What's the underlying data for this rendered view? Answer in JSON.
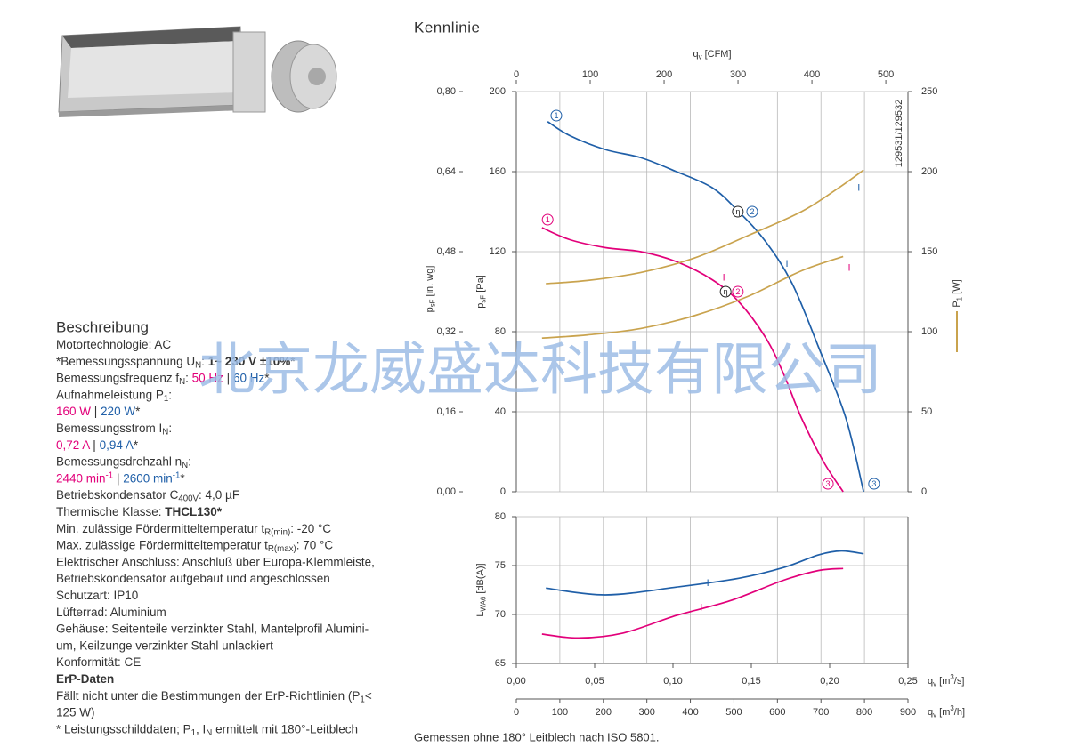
{
  "description": {
    "heading": "Beschreibung",
    "lines": [
      [
        {
          "t": "Motortechnologie: AC"
        }
      ],
      [
        {
          "t": "*Bemessungsspannung U"
        },
        {
          "t": "N",
          "style": "sub"
        },
        {
          "t": ": "
        },
        {
          "t": "1~ 230 V ±10%",
          "style": "bold"
        },
        {
          "t": "*"
        }
      ],
      [
        {
          "t": "Bemessungsfrequenz f"
        },
        {
          "t": "N",
          "style": "sub"
        },
        {
          "t": ": "
        },
        {
          "t": "50 Hz",
          "color": "#e2007a"
        },
        {
          "t": " | "
        },
        {
          "t": "60 Hz",
          "color": "#1f5fa8"
        },
        {
          "t": "*"
        }
      ],
      [
        {
          "t": "Aufnahmeleistung P"
        },
        {
          "t": "1",
          "style": "sub"
        },
        {
          "t": ":"
        }
      ],
      [
        {
          "t": "160 W",
          "color": "#e2007a"
        },
        {
          "t": " | "
        },
        {
          "t": "220 W",
          "color": "#1f5fa8"
        },
        {
          "t": "*"
        }
      ],
      [
        {
          "t": "Bemessungsstrom I"
        },
        {
          "t": "N",
          "style": "sub"
        },
        {
          "t": ":"
        }
      ],
      [
        {
          "t": "0,72 A",
          "color": "#e2007a"
        },
        {
          "t": " | "
        },
        {
          "t": "0,94 A",
          "color": "#1f5fa8"
        },
        {
          "t": "*"
        }
      ],
      [
        {
          "t": "Bemessungsdrehzahl n"
        },
        {
          "t": "N",
          "style": "sub"
        },
        {
          "t": ":"
        }
      ],
      [
        {
          "t": "2440 min",
          "color": "#e2007a"
        },
        {
          "t": "-1",
          "style": "sup",
          "color": "#e2007a"
        },
        {
          "t": " | "
        },
        {
          "t": "2600 min",
          "color": "#1f5fa8"
        },
        {
          "t": "-1",
          "style": "sup",
          "color": "#1f5fa8"
        },
        {
          "t": "*"
        }
      ],
      [
        {
          "t": "Betriebskondensator C"
        },
        {
          "t": "400V",
          "style": "sub"
        },
        {
          "t": ": 4,0 µF"
        }
      ],
      [
        {
          "t": "Thermische Klasse: "
        },
        {
          "t": "THCL130*",
          "style": "bold"
        }
      ],
      [
        {
          "t": "Min. zulässige Fördermitteltemperatur t"
        },
        {
          "t": "R(min)",
          "style": "sub"
        },
        {
          "t": ": -20 °C"
        }
      ],
      [
        {
          "t": "Max. zulässige Fördermitteltemperatur t"
        },
        {
          "t": "R(max)",
          "style": "sub"
        },
        {
          "t": ": 70 °C"
        }
      ],
      [
        {
          "t": "Elektrischer Anschluss: Anschluß über Europa-Klemmleiste,"
        }
      ],
      [
        {
          "t": "Betriebskondensator aufgebaut und angeschlossen"
        }
      ],
      [
        {
          "t": "Schutzart: IP10"
        }
      ],
      [
        {
          "t": "Lüfterrad: Aluminium"
        }
      ],
      [
        {
          "t": "Gehäuse: Seitenteile verzinkter Stahl, Mantelprofil Alumini-"
        }
      ],
      [
        {
          "t": "um, Keilzunge verzinkter Stahl unlackiert"
        }
      ],
      [
        {
          "t": "Konformität:  CE"
        }
      ],
      [
        {
          "t": "ErP-Daten",
          "style": "bold"
        }
      ],
      [
        {
          "t": "Fällt nicht unter die Bestimmungen der ErP-Richtlinien (P"
        },
        {
          "t": "1",
          "style": "sub"
        },
        {
          "t": "<"
        }
      ],
      [
        {
          "t": "125 W)"
        }
      ],
      [
        {
          "t": "* Leistungsschilddaten; P"
        },
        {
          "t": "1",
          "style": "sub"
        },
        {
          "t": ", I"
        },
        {
          "t": "N",
          "style": "sub"
        },
        {
          "t": " ermittelt mit 180°-Leitblech"
        }
      ]
    ]
  },
  "watermark": "北京龙威盛达科技有限公司",
  "footnote": "Gemessen ohne 180° Leitblech nach ISO 5801.",
  "chart_data": [
    {
      "type": "line",
      "title": "Kennlinie",
      "xlim": [
        0,
        900
      ],
      "xticks": [
        0,
        100,
        200,
        300,
        400,
        500,
        600,
        700,
        800,
        900
      ],
      "x3lim": [
        0,
        530
      ],
      "x3ticks": [
        0,
        100,
        200,
        300,
        400,
        500
      ],
      "x3label": [
        {
          "t": "q"
        },
        {
          "t": "v",
          "style": "sub"
        },
        {
          "t": " [CFM]"
        }
      ],
      "ylim": [
        0,
        200
      ],
      "yticks": [
        0,
        40,
        80,
        120,
        160,
        200
      ],
      "ylabel": [
        {
          "t": "p"
        },
        {
          "t": "sF",
          "style": "sub"
        },
        {
          "t": " [Pa]"
        }
      ],
      "y2lim": [
        0,
        0.8
      ],
      "y2ticks": [
        {
          "value": 0,
          "label": "0,00"
        },
        {
          "value": 0.16,
          "label": "0,16"
        },
        {
          "value": 0.32,
          "label": "0,32"
        },
        {
          "value": 0.48,
          "label": "0,48"
        },
        {
          "value": 0.64,
          "label": "0,64"
        },
        {
          "value": 0.8,
          "label": "0,80"
        }
      ],
      "y2label": [
        {
          "t": "p"
        },
        {
          "t": "sF",
          "style": "sub"
        },
        {
          "t": " [in. wg]"
        }
      ],
      "y3lim": [
        0,
        250
      ],
      "y3ticks": [
        0,
        50,
        100,
        150,
        200,
        250
      ],
      "y3label": [
        {
          "t": "P"
        },
        {
          "t": "1",
          "style": "sub"
        },
        {
          "t": " [W]"
        }
      ],
      "y3color": "#c9a34e",
      "grid": true,
      "id_label": "129531/129532",
      "series": [
        {
          "color": "#1f5fa8",
          "axis": "y",
          "x": [
            72,
            123,
            205,
            286,
            368,
            450,
            511,
            573,
            634,
            695,
            757,
            798
          ],
          "values": [
            185,
            178,
            171,
            167,
            160,
            152,
            140,
            125,
            104,
            72,
            37,
            0
          ]
        },
        {
          "color": "#e2007a",
          "axis": "y",
          "x": [
            59,
            123,
            205,
            286,
            368,
            450,
            511,
            573,
            614,
            655,
            706,
            751
          ],
          "values": [
            132,
            126,
            122,
            120,
            115,
            106,
            95,
            77,
            59,
            37,
            15,
            0
          ]
        },
        {
          "color": "#c9a34e",
          "axis": "y3",
          "x": [
            68,
            164,
            286,
            409,
            532,
            655,
            736,
            798
          ],
          "values": [
            130,
            132,
            137,
            146,
            160,
            175,
            189,
            201
          ]
        },
        {
          "color": "#c9a34e",
          "axis": "y3",
          "x": [
            59,
            164,
            286,
            409,
            532,
            655,
            751
          ],
          "values": [
            96,
            98,
            102,
            110,
            122,
            138,
            147
          ]
        }
      ],
      "annotations": [
        {
          "text": "1",
          "x": 92,
          "y": 188,
          "color": "#1f5fa8",
          "circle": true
        },
        {
          "text": "1",
          "x": 72,
          "y": 136,
          "color": "#e2007a",
          "circle": true
        },
        {
          "text": "η",
          "x": 509,
          "y": 140,
          "color": "#222222",
          "circle": true
        },
        {
          "text": "2",
          "x": 542,
          "y": 140,
          "color": "#1f5fa8",
          "circle": true
        },
        {
          "text": "η",
          "x": 481,
          "y": 100,
          "color": "#222222",
          "circle": true
        },
        {
          "text": "2",
          "x": 509,
          "y": 100,
          "color": "#e2007a",
          "circle": true
        },
        {
          "text": "3",
          "x": 716,
          "y": 4,
          "color": "#e2007a",
          "circle": true
        },
        {
          "text": "3",
          "x": 822,
          "y": 4,
          "color": "#1f5fa8",
          "circle": true
        },
        {
          "text": "I",
          "x": 787,
          "y": 152,
          "color": "#1f5fa8",
          "circle": false
        },
        {
          "text": "I",
          "x": 622,
          "y": 114,
          "color": "#1f5fa8",
          "circle": false
        },
        {
          "text": "I",
          "x": 477,
          "y": 107,
          "color": "#e2007a",
          "circle": false
        },
        {
          "text": "I",
          "x": 765,
          "y": 112,
          "color": "#e2007a",
          "circle": false
        }
      ]
    },
    {
      "type": "line",
      "xlim": [
        0,
        900
      ],
      "xticks": [
        0,
        100,
        200,
        300,
        400,
        500,
        600,
        700,
        800,
        900
      ],
      "xlabel": [
        {
          "t": "q"
        },
        {
          "t": "v",
          "style": "sub"
        },
        {
          "t": " [m"
        },
        {
          "t": "3",
          "style": "sup"
        },
        {
          "t": "/h]"
        }
      ],
      "x2lim": [
        0,
        0.25
      ],
      "x2ticks": [
        {
          "value": 0,
          "label": "0,00"
        },
        {
          "value": 0.05,
          "label": "0,05"
        },
        {
          "value": 0.1,
          "label": "0,10"
        },
        {
          "value": 0.15,
          "label": "0,15"
        },
        {
          "value": 0.2,
          "label": "0,20"
        },
        {
          "value": 0.25,
          "label": "0,25"
        }
      ],
      "x2label": [
        {
          "t": "q"
        },
        {
          "t": "v",
          "style": "sub"
        },
        {
          "t": " [m"
        },
        {
          "t": "3",
          "style": "sup"
        },
        {
          "t": "/s]"
        }
      ],
      "ylim": [
        65,
        80
      ],
      "yticks": [
        65,
        70,
        75,
        80
      ],
      "ylabel": [
        {
          "t": "L"
        },
        {
          "t": "WA6",
          "style": "sub"
        },
        {
          "t": " [dB(A)]"
        }
      ],
      "grid": true,
      "series": [
        {
          "color": "#1f5fa8",
          "axis": "y",
          "x": [
            68,
            205,
            368,
            511,
            614,
            695,
            747,
            798
          ],
          "values": [
            72.7,
            72.0,
            72.8,
            73.7,
            74.8,
            76.1,
            76.5,
            76.2
          ]
        },
        {
          "color": "#e2007a",
          "axis": "y",
          "x": [
            59,
            143,
            245,
            368,
            491,
            614,
            695,
            751
          ],
          "values": [
            68.0,
            67.6,
            68.1,
            69.9,
            71.4,
            73.5,
            74.5,
            74.7
          ]
        }
      ],
      "annotations": [
        {
          "text": "I",
          "x": 440,
          "y": 73.2,
          "color": "#1f5fa8",
          "circle": false
        },
        {
          "text": "I",
          "x": 425,
          "y": 70.7,
          "color": "#e2007a",
          "circle": false
        }
      ]
    }
  ]
}
